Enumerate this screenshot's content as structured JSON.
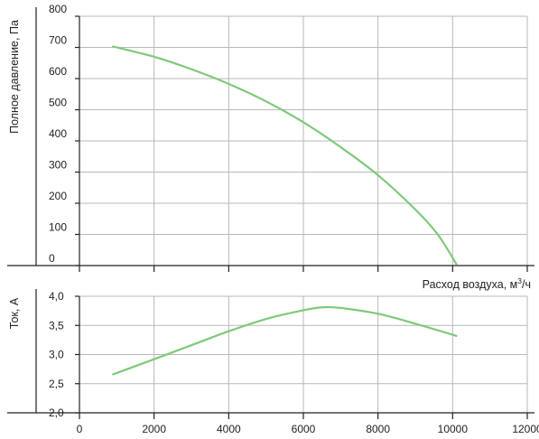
{
  "chart_data": [
    {
      "type": "line",
      "ylabel": "Полное давление, Па",
      "xlim": [
        0,
        12000
      ],
      "ylim": [
        0,
        800
      ],
      "yticks": [
        "0",
        "100",
        "200",
        "300",
        "400",
        "500",
        "600",
        "700",
        "800"
      ],
      "grid": true,
      "series": [
        {
          "color": "#7fc97a",
          "x": [
            900,
            2000,
            3000,
            4000,
            5000,
            6000,
            7000,
            8000,
            9000,
            9600,
            10100
          ],
          "y": [
            703,
            670,
            630,
            583,
            527,
            460,
            380,
            290,
            180,
            100,
            5
          ]
        }
      ]
    },
    {
      "type": "line",
      "ylabel": "Ток, А",
      "xlabel": "Расход воздуха, м",
      "xlabel_sup": "3",
      "xlabel_suffix": "/ч",
      "xlim": [
        0,
        12000
      ],
      "ylim": [
        2.0,
        4.0
      ],
      "yticks": [
        "2,0",
        "2,5",
        "3,0",
        "3,5",
        "4,0"
      ],
      "xticks": [
        "0",
        "2000",
        "4000",
        "6000",
        "8000",
        "10000",
        "12000"
      ],
      "grid": true,
      "series": [
        {
          "color": "#7fc97a",
          "x": [
            900,
            2000,
            3000,
            4000,
            5000,
            6000,
            6500,
            7000,
            8000,
            9000,
            10100
          ],
          "y": [
            2.66,
            2.92,
            3.16,
            3.4,
            3.61,
            3.76,
            3.81,
            3.8,
            3.7,
            3.53,
            3.32
          ]
        }
      ]
    }
  ]
}
